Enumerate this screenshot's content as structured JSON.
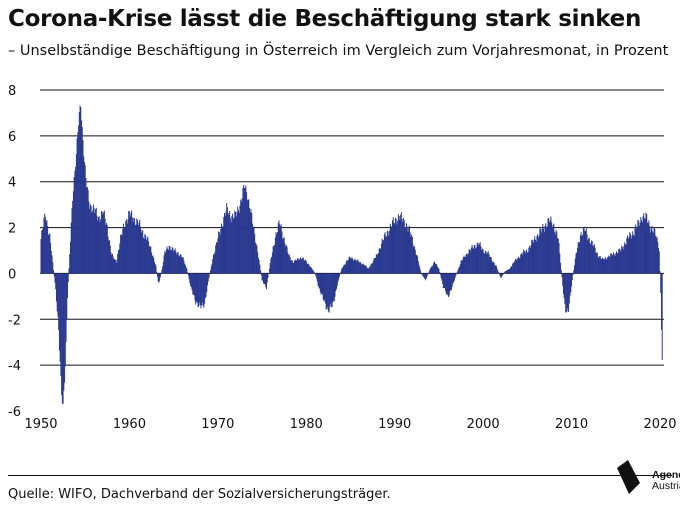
{
  "title": "Corona-Krise lässt die Beschäftigung stark sinken",
  "subtitle": "– Unselbständige Beschäftigung in Österreich im Vergleich zum Vorjahresmonat, in Prozent",
  "source": "Quelle: WIFO, Dachverband der Sozialversicherungsträger.",
  "logo": {
    "line1": "Agenda",
    "line2": "Austria"
  },
  "colors": {
    "bar": "#2a3990",
    "grid": "#111111"
  },
  "chart_data": {
    "type": "bar",
    "title": "Corona-Krise lässt die Beschäftigung stark sinken",
    "subtitle": "– Unselbständige Beschäftigung in Österreich im Vergleich zum Vorjahresmonat, in Prozent",
    "xlabel": "",
    "ylabel": "",
    "ylim": [
      -6,
      8
    ],
    "yticks": [
      8,
      6,
      4,
      2,
      0,
      -2,
      -4,
      -6
    ],
    "xlim": [
      1950,
      2020
    ],
    "xticks": [
      1950,
      1960,
      1970,
      1980,
      1990,
      2000,
      2010,
      2020
    ],
    "grid": true,
    "frequency": "monthly",
    "anchors": [
      [
        1950.0,
        1.5
      ],
      [
        1950.5,
        2.6
      ],
      [
        1951.0,
        1.6
      ],
      [
        1951.4,
        0.2
      ],
      [
        1951.7,
        -0.8
      ],
      [
        1952.0,
        -2.5
      ],
      [
        1952.3,
        -5.2
      ],
      [
        1952.5,
        -5.8
      ],
      [
        1952.8,
        -3.5
      ],
      [
        1953.0,
        -1.0
      ],
      [
        1953.3,
        1.2
      ],
      [
        1953.6,
        3.5
      ],
      [
        1954.0,
        5.2
      ],
      [
        1954.3,
        6.8
      ],
      [
        1954.5,
        7.4
      ],
      [
        1954.8,
        5.5
      ],
      [
        1955.1,
        4.0
      ],
      [
        1955.5,
        3.0
      ],
      [
        1956.0,
        2.8
      ],
      [
        1956.5,
        2.4
      ],
      [
        1957.0,
        2.7
      ],
      [
        1957.5,
        2.0
      ],
      [
        1958.0,
        0.8
      ],
      [
        1958.5,
        0.5
      ],
      [
        1959.0,
        1.5
      ],
      [
        1959.5,
        2.2
      ],
      [
        1960.0,
        2.6
      ],
      [
        1960.5,
        2.4
      ],
      [
        1961.0,
        2.2
      ],
      [
        1961.5,
        1.8
      ],
      [
        1962.0,
        1.5
      ],
      [
        1962.5,
        1.0
      ],
      [
        1963.0,
        0.3
      ],
      [
        1963.3,
        -0.5
      ],
      [
        1963.6,
        0.0
      ],
      [
        1964.0,
        0.9
      ],
      [
        1964.5,
        1.2
      ],
      [
        1965.0,
        1.0
      ],
      [
        1965.5,
        0.9
      ],
      [
        1966.0,
        0.7
      ],
      [
        1966.5,
        0.2
      ],
      [
        1967.0,
        -0.7
      ],
      [
        1967.5,
        -1.2
      ],
      [
        1968.0,
        -1.5
      ],
      [
        1968.5,
        -1.3
      ],
      [
        1969.0,
        -0.2
      ],
      [
        1969.5,
        0.8
      ],
      [
        1970.0,
        1.5
      ],
      [
        1970.5,
        2.2
      ],
      [
        1971.0,
        2.8
      ],
      [
        1971.5,
        2.5
      ],
      [
        1972.0,
        2.5
      ],
      [
        1972.5,
        3.0
      ],
      [
        1973.0,
        3.8
      ],
      [
        1973.3,
        3.5
      ],
      [
        1973.7,
        2.8
      ],
      [
        1974.0,
        2.0
      ],
      [
        1974.5,
        1.0
      ],
      [
        1975.0,
        -0.3
      ],
      [
        1975.5,
        -0.6
      ],
      [
        1976.0,
        0.6
      ],
      [
        1976.5,
        1.6
      ],
      [
        1977.0,
        2.2
      ],
      [
        1977.5,
        1.5
      ],
      [
        1978.0,
        0.8
      ],
      [
        1978.5,
        0.5
      ],
      [
        1979.0,
        0.6
      ],
      [
        1979.5,
        0.7
      ],
      [
        1980.0,
        0.5
      ],
      [
        1980.5,
        0.3
      ],
      [
        1981.0,
        0.0
      ],
      [
        1981.5,
        -0.7
      ],
      [
        1982.0,
        -1.2
      ],
      [
        1982.5,
        -1.6
      ],
      [
        1983.0,
        -1.4
      ],
      [
        1983.5,
        -0.5
      ],
      [
        1984.0,
        0.2
      ],
      [
        1984.5,
        0.5
      ],
      [
        1985.0,
        0.7
      ],
      [
        1985.5,
        0.6
      ],
      [
        1986.0,
        0.5
      ],
      [
        1986.5,
        0.4
      ],
      [
        1987.0,
        0.2
      ],
      [
        1987.5,
        0.5
      ],
      [
        1988.0,
        0.8
      ],
      [
        1988.5,
        1.3
      ],
      [
        1989.0,
        1.7
      ],
      [
        1989.5,
        2.0
      ],
      [
        1990.0,
        2.3
      ],
      [
        1990.5,
        2.5
      ],
      [
        1991.0,
        2.3
      ],
      [
        1991.5,
        2.0
      ],
      [
        1992.0,
        1.5
      ],
      [
        1992.5,
        0.8
      ],
      [
        1993.0,
        0.0
      ],
      [
        1993.5,
        -0.3
      ],
      [
        1994.0,
        0.2
      ],
      [
        1994.5,
        0.5
      ],
      [
        1995.0,
        0.2
      ],
      [
        1995.5,
        -0.6
      ],
      [
        1996.0,
        -1.0
      ],
      [
        1996.5,
        -0.6
      ],
      [
        1997.0,
        0.0
      ],
      [
        1997.5,
        0.5
      ],
      [
        1998.0,
        0.8
      ],
      [
        1998.5,
        1.0
      ],
      [
        1999.0,
        1.2
      ],
      [
        1999.5,
        1.3
      ],
      [
        2000.0,
        1.0
      ],
      [
        2000.5,
        0.9
      ],
      [
        2001.0,
        0.6
      ],
      [
        2001.5,
        0.3
      ],
      [
        2002.0,
        -0.2
      ],
      [
        2002.5,
        0.1
      ],
      [
        2003.0,
        0.2
      ],
      [
        2003.5,
        0.5
      ],
      [
        2004.0,
        0.7
      ],
      [
        2004.5,
        0.9
      ],
      [
        2005.0,
        1.0
      ],
      [
        2005.5,
        1.3
      ],
      [
        2006.0,
        1.6
      ],
      [
        2006.5,
        1.8
      ],
      [
        2007.0,
        2.1
      ],
      [
        2007.5,
        2.3
      ],
      [
        2008.0,
        2.1
      ],
      [
        2008.5,
        1.5
      ],
      [
        2009.0,
        -0.5
      ],
      [
        2009.3,
        -1.6
      ],
      [
        2009.6,
        -1.8
      ],
      [
        2010.0,
        -0.5
      ],
      [
        2010.5,
        0.8
      ],
      [
        2011.0,
        1.7
      ],
      [
        2011.5,
        1.9
      ],
      [
        2012.0,
        1.5
      ],
      [
        2012.5,
        1.2
      ],
      [
        2013.0,
        0.8
      ],
      [
        2013.5,
        0.6
      ],
      [
        2014.0,
        0.7
      ],
      [
        2014.5,
        0.8
      ],
      [
        2015.0,
        0.9
      ],
      [
        2015.5,
        1.0
      ],
      [
        2016.0,
        1.3
      ],
      [
        2016.5,
        1.6
      ],
      [
        2017.0,
        1.8
      ],
      [
        2017.5,
        2.1
      ],
      [
        2018.0,
        2.5
      ],
      [
        2018.5,
        2.4
      ],
      [
        2019.0,
        2.0
      ],
      [
        2019.5,
        1.7
      ],
      [
        2019.9,
        1.2
      ],
      [
        2020.1,
        -1.0
      ],
      [
        2020.3,
        -4.9
      ]
    ]
  }
}
